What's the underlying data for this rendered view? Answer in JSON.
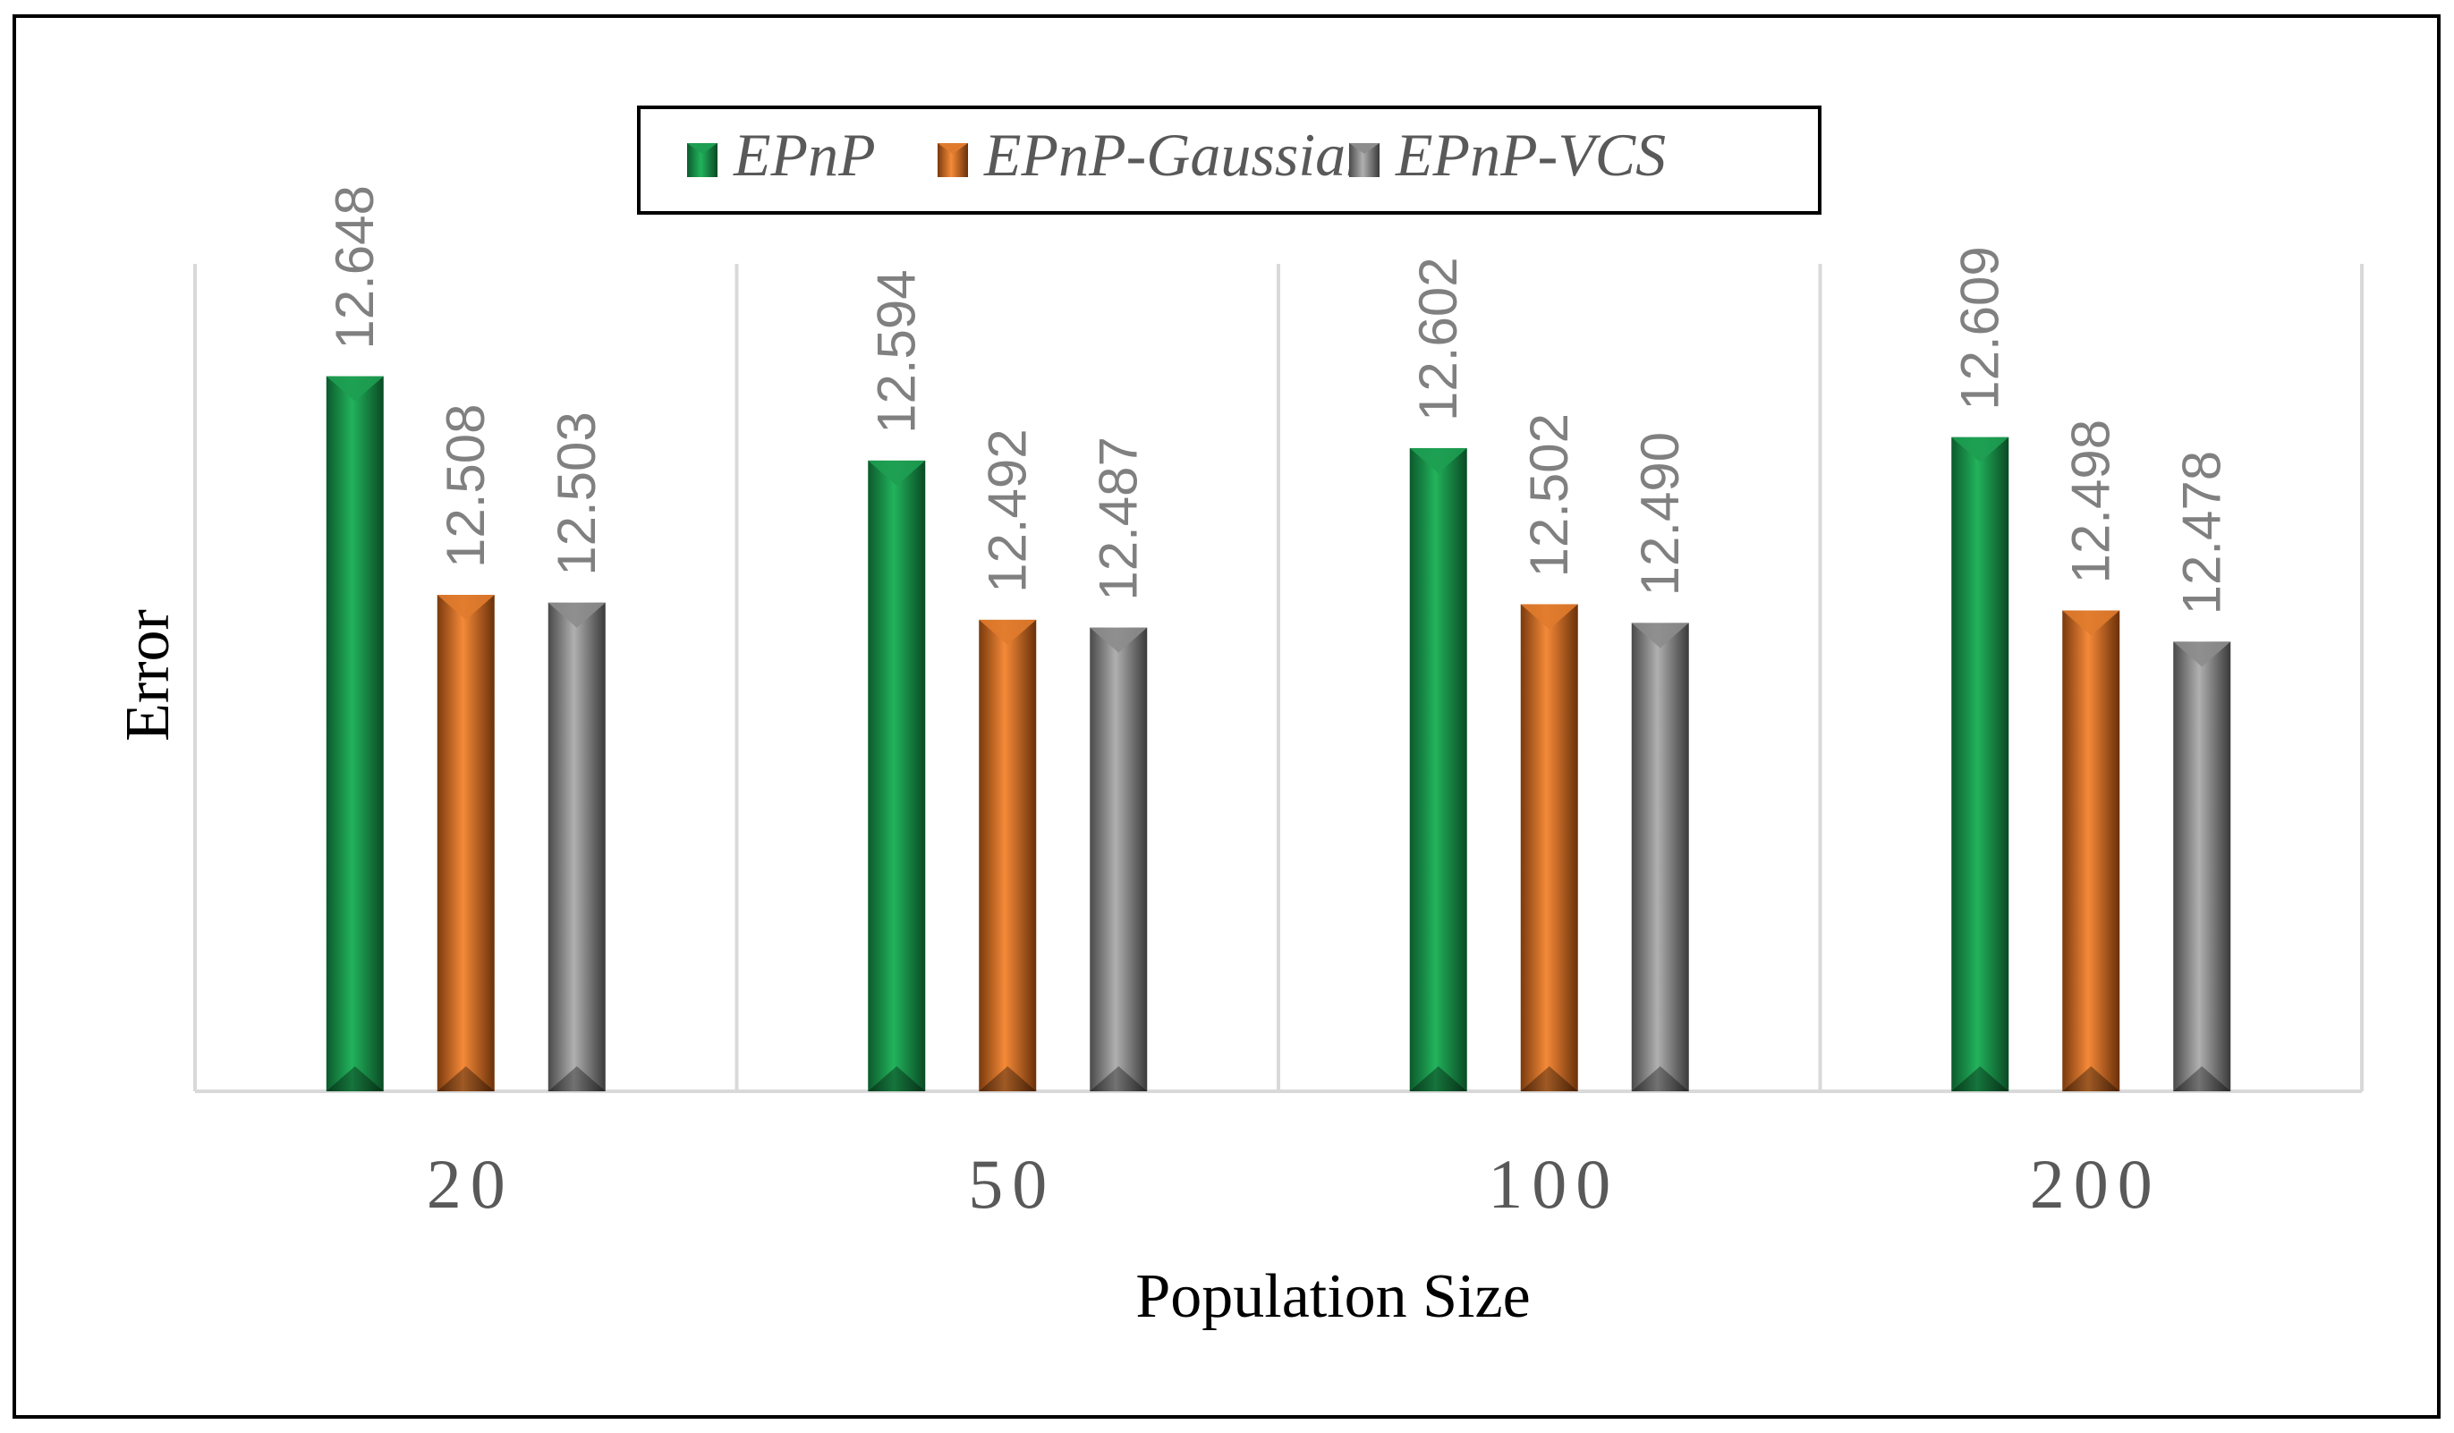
{
  "chart_data": {
    "type": "bar",
    "title": "",
    "xlabel": "Population Size",
    "ylabel": "Error",
    "categories": [
      "20",
      "50",
      "100",
      "200"
    ],
    "series": [
      {
        "name": "EPnP",
        "color": "#1e9e52",
        "values": [
          12.648,
          12.594,
          12.602,
          12.609
        ],
        "labels": [
          "12.648",
          "12.594",
          "12.602",
          "12.609"
        ]
      },
      {
        "name": "EPnP-Gaussian",
        "color": "#e07b2e",
        "values": [
          12.508,
          12.492,
          12.502,
          12.498
        ],
        "labels": [
          "12.508",
          "12.492",
          "12.502",
          "12.498"
        ]
      },
      {
        "name": "EPnP-VCS",
        "color": "#8c8c8c",
        "values": [
          12.503,
          12.487,
          12.49,
          12.478
        ],
        "labels": [
          "12.503",
          "12.487",
          "12.490",
          "12.478"
        ]
      }
    ],
    "ylim": [
      12.19,
      12.72
    ],
    "grid": true,
    "legend_position": "top-center"
  }
}
